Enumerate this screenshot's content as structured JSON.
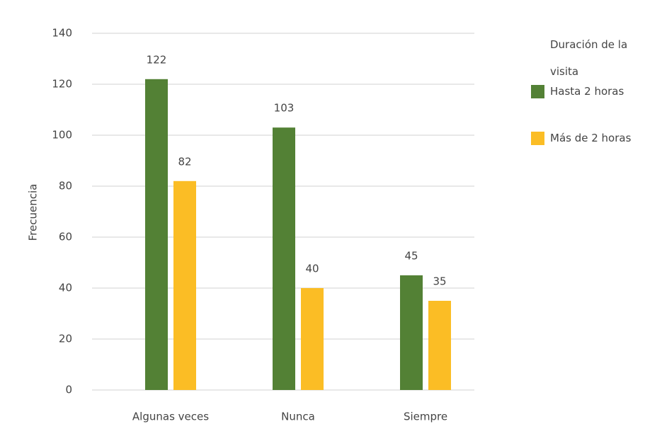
{
  "chart_data": {
    "type": "bar",
    "categories": [
      "Algunas veces",
      "Nunca",
      "Siempre"
    ],
    "series": [
      {
        "name": "Hasta 2 horas",
        "color": "#538135",
        "values": [
          122,
          103,
          45
        ]
      },
      {
        "name": "Más de 2 horas",
        "color": "#fbbd25",
        "values": [
          82,
          40,
          35
        ]
      }
    ],
    "y_label": "Frecuencia",
    "legend_title": "Duración de la visita",
    "legend": "right",
    "ylim": [
      0,
      140
    ],
    "yticks": [
      0,
      20,
      40,
      60,
      80,
      100,
      120,
      140
    ],
    "grid": true
  }
}
